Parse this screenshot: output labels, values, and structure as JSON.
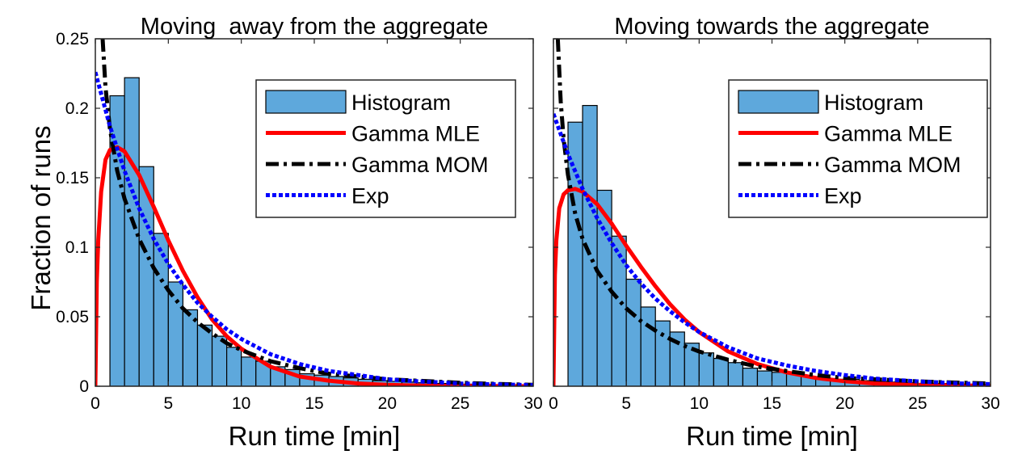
{
  "figure": {
    "ylabel": "Fraction of runs",
    "xlabel": "Run time [min]"
  },
  "colors": {
    "histogram": "#5ea8dc",
    "gamma_mle": "#ff0000",
    "gamma_mom": "#000000",
    "exp": "#0000ff"
  },
  "chart_data": [
    {
      "type": "bar",
      "title": "Moving  away from the aggregate",
      "xlabel": "Run time [min]",
      "ylabel": "Fraction of runs",
      "xlim": [
        0,
        30
      ],
      "ylim": [
        0,
        0.25
      ],
      "xticks": [
        "0",
        "5",
        "10",
        "15",
        "20",
        "25",
        "30"
      ],
      "yticks": [
        "0",
        "0.05",
        "0.1",
        "0.15",
        "0.2",
        "0.25"
      ],
      "legend": {
        "position": "top-right",
        "entries": [
          "Histogram",
          "Gamma MLE",
          "Gamma MOM",
          "Exp"
        ]
      },
      "histogram": {
        "bin_edges": [
          1,
          2,
          3,
          4,
          5,
          6,
          7,
          8,
          9,
          10,
          11,
          12,
          13,
          14,
          15,
          16,
          17,
          18,
          19,
          20,
          21,
          22,
          23,
          24,
          25,
          26,
          27,
          28,
          29,
          30
        ],
        "values": [
          0.209,
          0.222,
          0.158,
          0.11,
          0.075,
          0.055,
          0.044,
          0.036,
          0.028,
          0.021,
          0.018,
          0.014,
          0.012,
          0.009,
          0.008,
          0.007,
          0.006,
          0.005,
          0.004,
          0.0035,
          0.003,
          0.0025,
          0.002,
          0.002,
          0.0015,
          0.0015,
          0.001,
          0.001,
          0.001
        ]
      },
      "gamma_mle": {
        "x": [
          0,
          0.1,
          0.2,
          0.4,
          0.7,
          1,
          1.5,
          2,
          3,
          4,
          5,
          6,
          7,
          8,
          9,
          10,
          12,
          14,
          16,
          18,
          20,
          22,
          25,
          28,
          30
        ],
        "y": [
          0,
          0.075,
          0.105,
          0.14,
          0.163,
          0.17,
          0.172,
          0.169,
          0.152,
          0.129,
          0.105,
          0.083,
          0.064,
          0.048,
          0.036,
          0.027,
          0.014,
          0.007,
          0.004,
          0.002,
          0.001,
          0.0005,
          0.0002,
          0.0001,
          0
        ]
      },
      "gamma_mom": {
        "x": [
          0.5,
          0.7,
          1,
          1.5,
          2,
          3,
          4,
          5,
          6,
          7,
          8,
          9,
          10,
          12,
          14,
          16,
          18,
          20,
          22,
          25,
          28,
          30
        ],
        "y": [
          0.25,
          0.215,
          0.185,
          0.155,
          0.135,
          0.106,
          0.085,
          0.069,
          0.056,
          0.046,
          0.038,
          0.031,
          0.026,
          0.018,
          0.013,
          0.009,
          0.007,
          0.005,
          0.004,
          0.0025,
          0.0015,
          0.001
        ]
      },
      "exp": {
        "x": [
          0,
          1,
          2,
          3,
          4,
          5,
          6,
          7,
          8,
          9,
          10,
          12,
          14,
          16,
          18,
          20,
          22,
          25,
          28,
          30
        ],
        "y": [
          0.226,
          0.187,
          0.155,
          0.128,
          0.106,
          0.088,
          0.073,
          0.06,
          0.05,
          0.041,
          0.034,
          0.023,
          0.016,
          0.011,
          0.008,
          0.005,
          0.0036,
          0.002,
          0.0012,
          0.0008
        ]
      }
    },
    {
      "type": "bar",
      "title": "Moving towards the aggregate",
      "xlabel": "Run time [min]",
      "ylabel": "",
      "xlim": [
        0,
        30
      ],
      "ylim": [
        0,
        0.25
      ],
      "xticks": [
        "0",
        "5",
        "10",
        "15",
        "20",
        "25",
        "30"
      ],
      "yticks": [],
      "legend": {
        "position": "top-right",
        "entries": [
          "Histogram",
          "Gamma MLE",
          "Gamma MOM",
          "Exp"
        ]
      },
      "histogram": {
        "bin_edges": [
          1,
          2,
          3,
          4,
          5,
          6,
          7,
          8,
          9,
          10,
          11,
          12,
          13,
          14,
          15,
          16,
          17,
          18,
          19,
          20,
          21,
          22,
          23,
          24,
          25,
          26,
          27,
          28,
          29,
          30
        ],
        "values": [
          0.19,
          0.202,
          0.141,
          0.108,
          0.077,
          0.057,
          0.047,
          0.039,
          0.031,
          0.024,
          0.02,
          0.017,
          0.013,
          0.011,
          0.01,
          0.009,
          0.007,
          0.006,
          0.005,
          0.005,
          0.004,
          0.0035,
          0.003,
          0.0025,
          0.002,
          0.002,
          0.0015,
          0.0015,
          0.001
        ]
      },
      "gamma_mle": {
        "x": [
          0,
          0.1,
          0.2,
          0.4,
          0.7,
          1,
          1.5,
          2,
          3,
          4,
          5,
          6,
          7,
          8,
          9,
          10,
          12,
          14,
          16,
          18,
          20,
          22,
          25,
          28,
          30
        ],
        "y": [
          0,
          0.08,
          0.105,
          0.128,
          0.138,
          0.141,
          0.142,
          0.14,
          0.131,
          0.117,
          0.101,
          0.086,
          0.072,
          0.059,
          0.048,
          0.039,
          0.025,
          0.016,
          0.01,
          0.006,
          0.0036,
          0.002,
          0.001,
          0.0005,
          0.0003
        ]
      },
      "gamma_mom": {
        "x": [
          0.3,
          0.5,
          0.7,
          1,
          1.5,
          2,
          3,
          4,
          5,
          6,
          7,
          8,
          9,
          10,
          12,
          14,
          16,
          18,
          20,
          22,
          25,
          28,
          30
        ],
        "y": [
          0.25,
          0.205,
          0.178,
          0.152,
          0.124,
          0.106,
          0.083,
          0.068,
          0.056,
          0.047,
          0.04,
          0.034,
          0.029,
          0.025,
          0.019,
          0.014,
          0.011,
          0.008,
          0.006,
          0.005,
          0.0035,
          0.0025,
          0.002
        ]
      },
      "exp": {
        "x": [
          0,
          1,
          2,
          3,
          4,
          5,
          6,
          7,
          8,
          9,
          10,
          12,
          14,
          16,
          18,
          20,
          22,
          25,
          28,
          30
        ],
        "y": [
          0.196,
          0.167,
          0.142,
          0.121,
          0.103,
          0.087,
          0.074,
          0.063,
          0.054,
          0.046,
          0.039,
          0.028,
          0.02,
          0.015,
          0.011,
          0.008,
          0.0055,
          0.0035,
          0.002,
          0.0015
        ]
      }
    }
  ]
}
